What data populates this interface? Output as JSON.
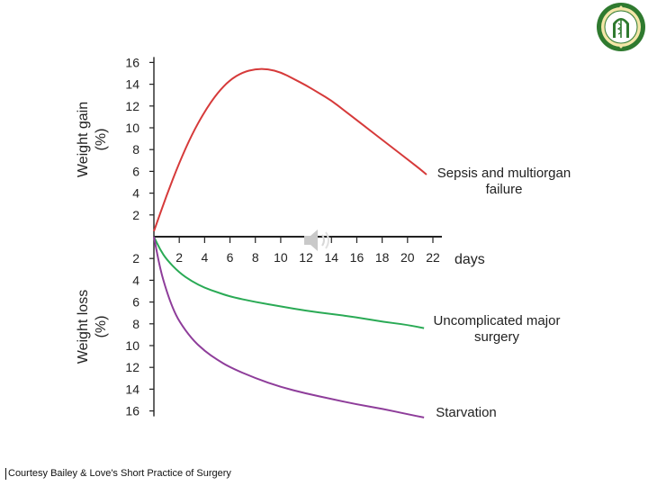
{
  "chart_data": {
    "type": "line",
    "xlabel": "days",
    "x_ticks": [
      2,
      4,
      6,
      8,
      10,
      12,
      14,
      16,
      18,
      20,
      22
    ],
    "xlim": [
      0,
      22
    ],
    "y_gain_label": [
      "Weight gain",
      "(%)"
    ],
    "y_loss_label": [
      "Weight loss",
      "(%)"
    ],
    "y_gain_ticks": [
      16,
      14,
      12,
      10,
      8,
      6,
      4,
      2
    ],
    "y_loss_ticks": [
      2,
      4,
      6,
      8,
      10,
      12,
      14,
      16
    ],
    "ylim": [
      -16,
      16
    ],
    "series": [
      {
        "name": "Sepsis and multiorgan failure",
        "label_lines": [
          "Sepsis and multiorgan",
          "failure"
        ],
        "color": "#d63a3a",
        "x": [
          0,
          1,
          2,
          3,
          4,
          5,
          6,
          7,
          8,
          9,
          10,
          11,
          12,
          13,
          14,
          15,
          16,
          17,
          18,
          19,
          20,
          21,
          21.5
        ],
        "y": [
          0.5,
          3.8,
          6.8,
          9.4,
          11.5,
          13.2,
          14.4,
          15.1,
          15.4,
          15.4,
          15.1,
          14.5,
          13.9,
          13.2,
          12.5,
          11.6,
          10.7,
          9.8,
          8.9,
          8.0,
          7.1,
          6.2,
          5.7
        ]
      },
      {
        "name": "Uncomplicated major surgery",
        "label_lines": [
          "Uncomplicated major",
          "surgery"
        ],
        "color": "#2aaa55",
        "x": [
          0,
          0.5,
          1,
          2,
          3,
          4,
          5,
          6,
          8,
          10,
          12,
          14,
          16,
          18,
          20,
          21.3
        ],
        "y": [
          0,
          -1.2,
          -2.1,
          -3.3,
          -4.1,
          -4.7,
          -5.1,
          -5.5,
          -6.0,
          -6.4,
          -6.8,
          -7.1,
          -7.4,
          -7.8,
          -8.1,
          -8.4
        ]
      },
      {
        "name": "Starvation",
        "label_lines": [
          "Starvation"
        ],
        "color": "#8e3d9a",
        "x": [
          0,
          0.5,
          1,
          1.5,
          2,
          3,
          4,
          5,
          6,
          8,
          10,
          12,
          14,
          16,
          18,
          20,
          21.3
        ],
        "y": [
          0,
          -3.0,
          -5.0,
          -6.6,
          -7.8,
          -9.4,
          -10.5,
          -11.3,
          -12.0,
          -13.0,
          -13.8,
          -14.4,
          -14.9,
          -15.4,
          -15.8,
          -16.3,
          -16.6
        ]
      }
    ]
  },
  "caption": "Courtesy Bailey & Love's Short Practice of Surgery",
  "icons": {
    "logo": "university-seal-icon",
    "speaker": "speaker-icon"
  }
}
